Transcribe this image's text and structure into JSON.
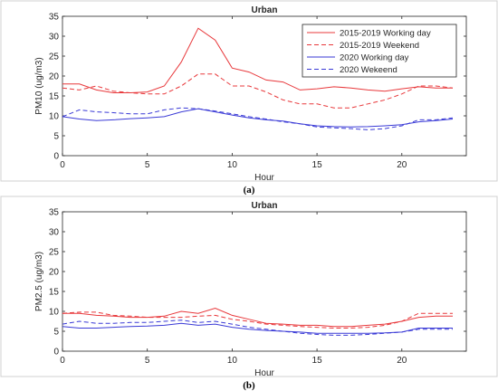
{
  "chart_data": [
    {
      "type": "line",
      "title": "Urban",
      "xlabel": "Hour",
      "ylabel": "PM10 (ug/m3)",
      "caption": "(a)",
      "xlim": [
        0,
        23.8
      ],
      "ylim": [
        0,
        35
      ],
      "xticks": [
        0,
        5,
        10,
        15,
        20
      ],
      "yticks": [
        0,
        5,
        10,
        15,
        20,
        25,
        30,
        35
      ],
      "grid": false,
      "legend_position": "top-right",
      "x": [
        0,
        1,
        2,
        3,
        4,
        5,
        6,
        7,
        8,
        9,
        10,
        11,
        12,
        13,
        14,
        15,
        16,
        17,
        18,
        19,
        20,
        21,
        22,
        23
      ],
      "series": [
        {
          "name": "2015-2019 Working day",
          "color": "#e8383b",
          "dash": "solid",
          "values": [
            18,
            18,
            16.5,
            15.8,
            15.8,
            16,
            17.5,
            23.5,
            32,
            29,
            22,
            21,
            19,
            18.5,
            16.5,
            16.8,
            17.3,
            17,
            16.5,
            16.2,
            16.8,
            17.3,
            17,
            17
          ]
        },
        {
          "name": "2015-2019 Weekend",
          "color": "#e8383b",
          "dash": "dashed",
          "values": [
            17,
            16.5,
            17.5,
            16.2,
            15.8,
            15.5,
            15.5,
            17.5,
            20.5,
            20.5,
            17.5,
            17.5,
            16,
            14,
            13,
            13,
            12,
            12,
            13,
            14,
            15.5,
            17.5,
            17.5,
            17
          ]
        },
        {
          "name": "2020 Working day",
          "color": "#3a3ad6",
          "dash": "solid",
          "values": [
            9.8,
            9.2,
            8.8,
            9,
            9.3,
            9.5,
            9.8,
            11,
            11.8,
            11,
            10.2,
            9.5,
            9,
            8.7,
            8,
            7.5,
            7.3,
            7.2,
            7.3,
            7.5,
            7.8,
            8.5,
            8.8,
            9.2
          ]
        },
        {
          "name": "2020 Wekeend",
          "color": "#3a3ad6",
          "dash": "dashed",
          "values": [
            9.8,
            11.5,
            11,
            10.8,
            10.5,
            10.5,
            11.5,
            12,
            11.8,
            11.2,
            10.5,
            9.8,
            9.2,
            8.5,
            8,
            7.2,
            7,
            6.8,
            6.5,
            6.8,
            7.5,
            9,
            9,
            9.5
          ]
        }
      ]
    },
    {
      "type": "line",
      "title": "Urban",
      "xlabel": "Hour",
      "ylabel": "PM2.5 (ug/m3)",
      "caption": "(b)",
      "xlim": [
        0,
        23.8
      ],
      "ylim": [
        0,
        35
      ],
      "xticks": [
        0,
        5,
        10,
        15,
        20
      ],
      "yticks": [
        0,
        5,
        10,
        15,
        20,
        25,
        30,
        35
      ],
      "grid": false,
      "x": [
        0,
        1,
        2,
        3,
        4,
        5,
        6,
        7,
        8,
        9,
        10,
        11,
        12,
        13,
        14,
        15,
        16,
        17,
        18,
        19,
        20,
        21,
        22,
        23
      ],
      "series": [
        {
          "color": "#e8383b",
          "dash": "solid",
          "values": [
            9.5,
            9.5,
            9,
            8.8,
            8.5,
            8.5,
            8.8,
            10,
            9.5,
            10.8,
            9,
            8,
            7,
            6.8,
            6.5,
            6.5,
            6.2,
            6.2,
            6.5,
            6.8,
            7.5,
            8.5,
            8.8,
            8.8
          ]
        },
        {
          "color": "#e8383b",
          "dash": "dashed",
          "values": [
            9.5,
            9.8,
            9.8,
            9,
            8.8,
            8.5,
            8.5,
            8.5,
            8.8,
            9,
            8,
            7.5,
            6.8,
            6.5,
            6.2,
            6,
            5.8,
            5.8,
            6,
            6.5,
            7.5,
            9.5,
            9.5,
            9.5
          ]
        },
        {
          "color": "#3a3ad6",
          "dash": "solid",
          "values": [
            6.2,
            5.8,
            5.8,
            6,
            6.2,
            6.3,
            6.5,
            7,
            6.5,
            6.8,
            6,
            5.5,
            5.2,
            5,
            4.8,
            4.5,
            4.5,
            4.5,
            4.5,
            4.6,
            4.8,
            5.8,
            5.8,
            5.8
          ]
        },
        {
          "color": "#3a3ad6",
          "dash": "dashed",
          "values": [
            6.8,
            7.5,
            7,
            7,
            7.2,
            7.2,
            7.5,
            7.8,
            7.2,
            7.5,
            6.8,
            6,
            5.5,
            5,
            4.5,
            4.2,
            4,
            4,
            4.2,
            4.5,
            4.8,
            5.5,
            5.5,
            5.5
          ]
        }
      ]
    }
  ]
}
